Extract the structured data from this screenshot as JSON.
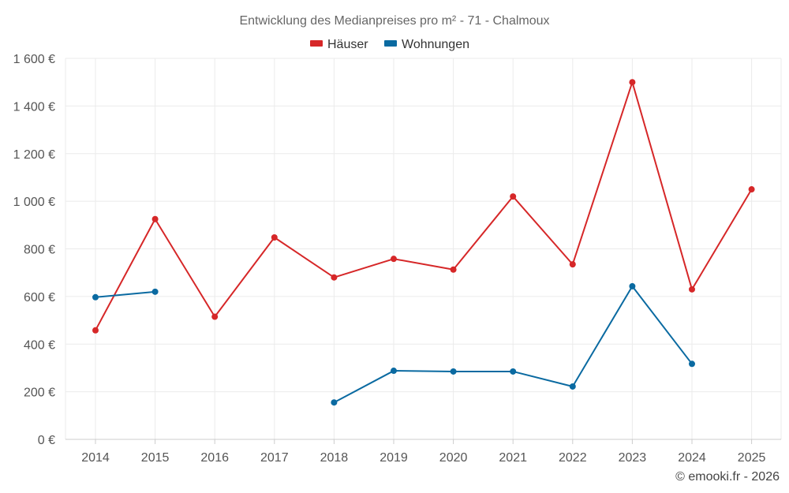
{
  "chart_data": {
    "type": "line",
    "title": "Entwicklung des Medianpreises pro m² - 71 - Chalmoux",
    "categories": [
      "2014",
      "2015",
      "2016",
      "2017",
      "2018",
      "2019",
      "2020",
      "2021",
      "2022",
      "2023",
      "2024",
      "2025"
    ],
    "y_ticks": [
      "0 €",
      "200 €",
      "400 €",
      "600 €",
      "800 €",
      "1 000 €",
      "1 200 €",
      "1 400 €",
      "1 600 €"
    ],
    "ylim": [
      0,
      1600
    ],
    "grid": true,
    "legend_position": "top-center",
    "series": [
      {
        "name": "Häuser",
        "color": "#d62728",
        "values": [
          458,
          925,
          515,
          848,
          680,
          758,
          713,
          1020,
          735,
          1500,
          630,
          1050
        ]
      },
      {
        "name": "Wohnungen",
        "color": "#0a6aa1",
        "values": [
          597,
          620,
          null,
          null,
          155,
          288,
          285,
          285,
          222,
          643,
          317,
          null
        ]
      }
    ]
  },
  "credit": "© emooki.fr - 2026"
}
